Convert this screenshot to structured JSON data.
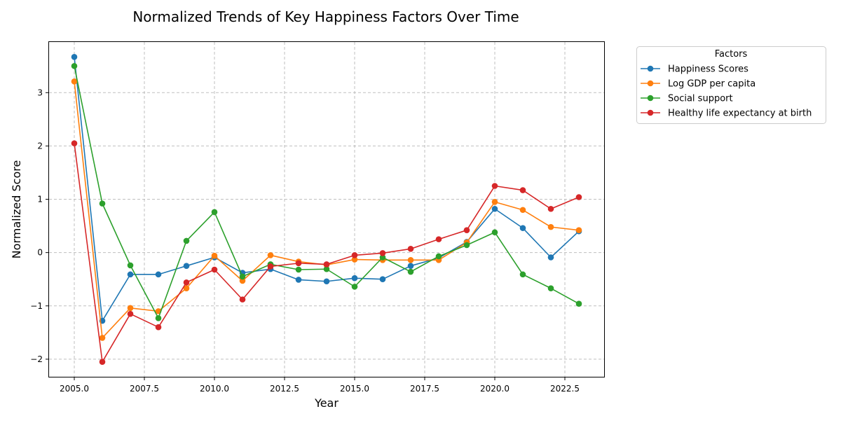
{
  "chart_data": {
    "type": "line",
    "title": "Normalized Trends of Key Happiness Factors Over Time",
    "xlabel": "Year",
    "ylabel": "Normalized Score",
    "xlim": [
      2004.1,
      2023.9
    ],
    "ylim": [
      -2.33,
      3.95
    ],
    "x_ticks": [
      2005,
      2007.5,
      2010,
      2012.5,
      2015,
      2017.5,
      2020,
      2022.5
    ],
    "x_tick_labels": [
      "2005.0",
      "2007.5",
      "2010.0",
      "2012.5",
      "2015.0",
      "2017.5",
      "2020.0",
      "2022.5"
    ],
    "y_ticks": [
      -2,
      -1,
      0,
      1,
      2,
      3
    ],
    "y_tick_labels": [
      "−2",
      "−1",
      "0",
      "1",
      "2",
      "3"
    ],
    "grid": true,
    "legend": {
      "title": "Factors",
      "placement": "outside-top-right"
    },
    "x": [
      2005,
      2006,
      2007,
      2008,
      2009,
      2010,
      2011,
      2012,
      2013,
      2014,
      2015,
      2016,
      2017,
      2018,
      2019,
      2020,
      2021,
      2022,
      2023
    ],
    "series": [
      {
        "name": "Happiness Scores",
        "color": "#1f77b4",
        "values": [
          3.67,
          -1.28,
          -0.41,
          -0.41,
          -0.25,
          -0.09,
          -0.38,
          -0.31,
          -0.51,
          -0.54,
          -0.48,
          -0.5,
          -0.25,
          -0.1,
          0.2,
          0.82,
          0.46,
          -0.09,
          0.4
        ]
      },
      {
        "name": "Log GDP per capita",
        "color": "#ff7f0e",
        "values": [
          3.21,
          -1.6,
          -1.04,
          -1.1,
          -0.67,
          -0.06,
          -0.53,
          -0.05,
          -0.17,
          -0.23,
          -0.13,
          -0.14,
          -0.14,
          -0.14,
          0.19,
          0.95,
          0.8,
          0.48,
          0.42
        ]
      },
      {
        "name": "Social support",
        "color": "#2ca02c",
        "values": [
          3.5,
          0.92,
          -0.24,
          -1.23,
          0.22,
          0.76,
          -0.45,
          -0.22,
          -0.32,
          -0.31,
          -0.64,
          -0.09,
          -0.36,
          -0.07,
          0.14,
          0.38,
          -0.41,
          -0.67,
          -0.96
        ]
      },
      {
        "name": "Healthy life expectancy at birth",
        "color": "#d62728",
        "values": [
          2.05,
          -2.05,
          -1.15,
          -1.4,
          -0.56,
          -0.32,
          -0.88,
          -0.26,
          -0.2,
          -0.22,
          -0.05,
          -0.01,
          0.07,
          0.25,
          0.42,
          1.25,
          1.17,
          0.82,
          1.04
        ]
      }
    ]
  }
}
